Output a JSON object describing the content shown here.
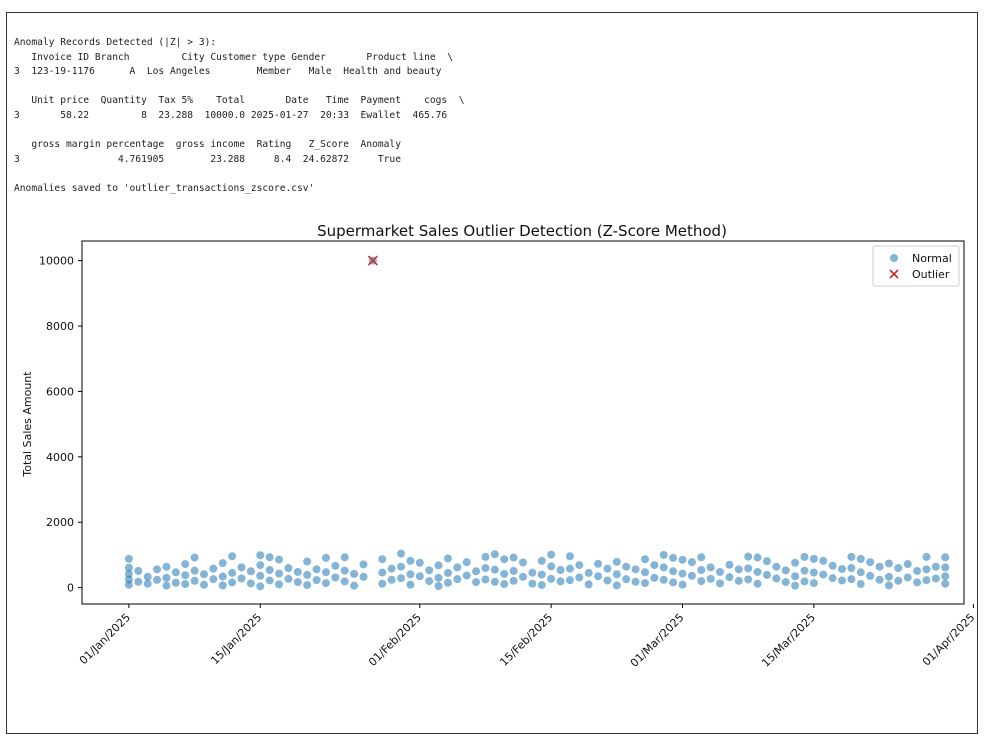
{
  "console": {
    "lines": [
      "Anomaly Records Detected (|Z| > 3):",
      "   Invoice ID Branch         City Customer type Gender       Product line  \\",
      "3  123-19-1176      A  Los Angeles        Member   Male  Health and beauty",
      "",
      "   Unit price  Quantity  Tax 5%    Total       Date   Time  Payment    cogs  \\",
      "3       58.22         8  23.288  10000.0 2025-01-27  20:33  Ewallet  465.76",
      "",
      "   gross margin percentage  gross income  Rating   Z_Score  Anomaly",
      "3                 4.761905        23.288     8.4  24.62872     True",
      "",
      "Anomalies saved to 'outlier_transactions_zscore.csv'"
    ]
  },
  "chart_data": {
    "type": "scatter",
    "title": "Supermarket Sales Outlier Detection (Z-Score Method)",
    "xlabel": "",
    "ylabel": "Total Sales Amount",
    "x_type": "date",
    "xlim": [
      "2024-12-27",
      "2025-03-31"
    ],
    "ylim": [
      -500,
      10600
    ],
    "yticks": [
      0,
      2000,
      4000,
      6000,
      8000,
      10000
    ],
    "xticks": [
      "01/Jan/2025",
      "15/Jan/2025",
      "01/Feb/2025",
      "15/Feb/2025",
      "01/Mar/2025",
      "15/Mar/2025",
      "01/Apr/2025"
    ],
    "grid": false,
    "legend": {
      "position": "top-right",
      "entries": [
        "Normal",
        "Outlier"
      ]
    },
    "series": [
      {
        "name": "Normal",
        "color": "#1f77b4",
        "marker": "circle",
        "note_value_range": [
          10,
          1040
        ],
        "points": [
          [
            "2025-01-01",
            880
          ],
          [
            "2025-01-01",
            610
          ],
          [
            "2025-01-01",
            420
          ],
          [
            "2025-01-01",
            250
          ],
          [
            "2025-01-01",
            90
          ],
          [
            "2025-01-02",
            510
          ],
          [
            "2025-01-02",
            180
          ],
          [
            "2025-01-03",
            330
          ],
          [
            "2025-01-03",
            120
          ],
          [
            "2025-01-04",
            560
          ],
          [
            "2025-01-04",
            240
          ],
          [
            "2025-01-05",
            640
          ],
          [
            "2025-01-05",
            300
          ],
          [
            "2025-01-05",
            60
          ],
          [
            "2025-01-06",
            470
          ],
          [
            "2025-01-06",
            150
          ],
          [
            "2025-01-07",
            720
          ],
          [
            "2025-01-07",
            380
          ],
          [
            "2025-01-07",
            110
          ],
          [
            "2025-01-08",
            920
          ],
          [
            "2025-01-08",
            520
          ],
          [
            "2025-01-08",
            210
          ],
          [
            "2025-01-09",
            410
          ],
          [
            "2025-01-09",
            90
          ],
          [
            "2025-01-10",
            580
          ],
          [
            "2025-01-10",
            260
          ],
          [
            "2025-01-11",
            750
          ],
          [
            "2025-01-11",
            340
          ],
          [
            "2025-01-11",
            70
          ],
          [
            "2025-01-12",
            960
          ],
          [
            "2025-01-12",
            450
          ],
          [
            "2025-01-12",
            160
          ],
          [
            "2025-01-13",
            620
          ],
          [
            "2025-01-13",
            280
          ],
          [
            "2025-01-14",
            500
          ],
          [
            "2025-01-14",
            130
          ],
          [
            "2025-01-15",
            990
          ],
          [
            "2025-01-15",
            690
          ],
          [
            "2025-01-15",
            360
          ],
          [
            "2025-01-15",
            40
          ],
          [
            "2025-01-16",
            930
          ],
          [
            "2025-01-16",
            540
          ],
          [
            "2025-01-16",
            220
          ],
          [
            "2025-01-17",
            860
          ],
          [
            "2025-01-17",
            430
          ],
          [
            "2025-01-17",
            100
          ],
          [
            "2025-01-18",
            600
          ],
          [
            "2025-01-18",
            270
          ],
          [
            "2025-01-19",
            480
          ],
          [
            "2025-01-19",
            170
          ],
          [
            "2025-01-20",
            800
          ],
          [
            "2025-01-20",
            390
          ],
          [
            "2025-01-20",
            80
          ],
          [
            "2025-01-21",
            560
          ],
          [
            "2025-01-21",
            230
          ],
          [
            "2025-01-22",
            910
          ],
          [
            "2025-01-22",
            470
          ],
          [
            "2025-01-22",
            140
          ],
          [
            "2025-01-23",
            670
          ],
          [
            "2025-01-23",
            310
          ],
          [
            "2025-01-24",
            930
          ],
          [
            "2025-01-24",
            520
          ],
          [
            "2025-01-24",
            190
          ],
          [
            "2025-01-25",
            420
          ],
          [
            "2025-01-25",
            60
          ],
          [
            "2025-01-26",
            710
          ],
          [
            "2025-01-26",
            330
          ],
          [
            "2025-01-28",
            870
          ],
          [
            "2025-01-28",
            460
          ],
          [
            "2025-01-28",
            120
          ],
          [
            "2025-01-29",
            580
          ],
          [
            "2025-01-29",
            240
          ],
          [
            "2025-01-30",
            1040
          ],
          [
            "2025-01-30",
            640
          ],
          [
            "2025-01-30",
            290
          ],
          [
            "2025-01-31",
            820
          ],
          [
            "2025-01-31",
            410
          ],
          [
            "2025-01-31",
            90
          ],
          [
            "2025-02-01",
            760
          ],
          [
            "2025-02-01",
            350
          ],
          [
            "2025-02-02",
            530
          ],
          [
            "2025-02-02",
            200
          ],
          [
            "2025-02-03",
            680
          ],
          [
            "2025-02-03",
            300
          ],
          [
            "2025-02-03",
            50
          ],
          [
            "2025-02-04",
            890
          ],
          [
            "2025-02-04",
            450
          ],
          [
            "2025-02-04",
            150
          ],
          [
            "2025-02-05",
            620
          ],
          [
            "2025-02-05",
            260
          ],
          [
            "2025-02-06",
            780
          ],
          [
            "2025-02-06",
            370
          ],
          [
            "2025-02-07",
            500
          ],
          [
            "2025-02-07",
            170
          ],
          [
            "2025-02-08",
            940
          ],
          [
            "2025-02-08",
            600
          ],
          [
            "2025-02-08",
            250
          ],
          [
            "2025-02-09",
            1020
          ],
          [
            "2025-02-09",
            550
          ],
          [
            "2025-02-09",
            180
          ],
          [
            "2025-02-10",
            870
          ],
          [
            "2025-02-10",
            420
          ],
          [
            "2025-02-10",
            110
          ],
          [
            "2025-02-11",
            920
          ],
          [
            "2025-02-11",
            510
          ],
          [
            "2025-02-11",
            210
          ],
          [
            "2025-02-12",
            770
          ],
          [
            "2025-02-12",
            330
          ],
          [
            "2025-02-13",
            460
          ],
          [
            "2025-02-13",
            120
          ],
          [
            "2025-02-14",
            820
          ],
          [
            "2025-02-14",
            400
          ],
          [
            "2025-02-14",
            80
          ],
          [
            "2025-02-15",
            1010
          ],
          [
            "2025-02-15",
            650
          ],
          [
            "2025-02-15",
            270
          ],
          [
            "2025-02-16",
            540
          ],
          [
            "2025-02-16",
            190
          ],
          [
            "2025-02-17",
            960
          ],
          [
            "2025-02-17",
            580
          ],
          [
            "2025-02-17",
            230
          ],
          [
            "2025-02-18",
            690
          ],
          [
            "2025-02-18",
            310
          ],
          [
            "2025-02-19",
            450
          ],
          [
            "2025-02-19",
            100
          ],
          [
            "2025-02-20",
            730
          ],
          [
            "2025-02-20",
            350
          ],
          [
            "2025-02-21",
            580
          ],
          [
            "2025-02-21",
            220
          ],
          [
            "2025-02-22",
            790
          ],
          [
            "2025-02-22",
            410
          ],
          [
            "2025-02-22",
            70
          ],
          [
            "2025-02-23",
            640
          ],
          [
            "2025-02-23",
            260
          ],
          [
            "2025-02-24",
            560
          ],
          [
            "2025-02-24",
            180
          ],
          [
            "2025-02-25",
            870
          ],
          [
            "2025-02-25",
            470
          ],
          [
            "2025-02-25",
            140
          ],
          [
            "2025-02-26",
            690
          ],
          [
            "2025-02-26",
            300
          ],
          [
            "2025-02-27",
            1000
          ],
          [
            "2025-02-27",
            620
          ],
          [
            "2025-02-27",
            240
          ],
          [
            "2025-02-28",
            910
          ],
          [
            "2025-02-28",
            500
          ],
          [
            "2025-02-28",
            160
          ],
          [
            "2025-03-01",
            850
          ],
          [
            "2025-03-01",
            430
          ],
          [
            "2025-03-01",
            90
          ],
          [
            "2025-03-02",
            780
          ],
          [
            "2025-03-02",
            360
          ],
          [
            "2025-03-03",
            930
          ],
          [
            "2025-03-03",
            540
          ],
          [
            "2025-03-03",
            200
          ],
          [
            "2025-03-04",
            620
          ],
          [
            "2025-03-04",
            270
          ],
          [
            "2025-03-05",
            480
          ],
          [
            "2025-03-05",
            130
          ],
          [
            "2025-03-06",
            700
          ],
          [
            "2025-03-06",
            320
          ],
          [
            "2025-03-07",
            560
          ],
          [
            "2025-03-07",
            210
          ],
          [
            "2025-03-08",
            950
          ],
          [
            "2025-03-08",
            590
          ],
          [
            "2025-03-08",
            250
          ],
          [
            "2025-03-09",
            920
          ],
          [
            "2025-03-09",
            480
          ],
          [
            "2025-03-09",
            120
          ],
          [
            "2025-03-10",
            810
          ],
          [
            "2025-03-10",
            390
          ],
          [
            "2025-03-11",
            640
          ],
          [
            "2025-03-11",
            280
          ],
          [
            "2025-03-12",
            530
          ],
          [
            "2025-03-12",
            170
          ],
          [
            "2025-03-13",
            760
          ],
          [
            "2025-03-13",
            350
          ],
          [
            "2025-03-13",
            60
          ],
          [
            "2025-03-14",
            940
          ],
          [
            "2025-03-14",
            520
          ],
          [
            "2025-03-14",
            190
          ],
          [
            "2025-03-15",
            880
          ],
          [
            "2025-03-15",
            460
          ],
          [
            "2025-03-15",
            140
          ],
          [
            "2025-03-16",
            820
          ],
          [
            "2025-03-16",
            400
          ],
          [
            "2025-03-17",
            670
          ],
          [
            "2025-03-17",
            290
          ],
          [
            "2025-03-18",
            570
          ],
          [
            "2025-03-18",
            220
          ],
          [
            "2025-03-19",
            940
          ],
          [
            "2025-03-19",
            600
          ],
          [
            "2025-03-19",
            260
          ],
          [
            "2025-03-20",
            880
          ],
          [
            "2025-03-20",
            470
          ],
          [
            "2025-03-20",
            110
          ],
          [
            "2025-03-21",
            780
          ],
          [
            "2025-03-21",
            360
          ],
          [
            "2025-03-22",
            640
          ],
          [
            "2025-03-22",
            240
          ],
          [
            "2025-03-23",
            740
          ],
          [
            "2025-03-23",
            330
          ],
          [
            "2025-03-23",
            70
          ],
          [
            "2025-03-24",
            600
          ],
          [
            "2025-03-24",
            210
          ],
          [
            "2025-03-25",
            720
          ],
          [
            "2025-03-25",
            310
          ],
          [
            "2025-03-26",
            510
          ],
          [
            "2025-03-26",
            160
          ],
          [
            "2025-03-27",
            940
          ],
          [
            "2025-03-27",
            560
          ],
          [
            "2025-03-27",
            230
          ],
          [
            "2025-03-28",
            640
          ],
          [
            "2025-03-28",
            280
          ],
          [
            "2025-03-29",
            930
          ],
          [
            "2025-03-29",
            620
          ],
          [
            "2025-03-29",
            350
          ],
          [
            "2025-03-29",
            120
          ]
        ]
      },
      {
        "name": "Outlier",
        "color": "#d62728",
        "marker": "x",
        "points": [
          [
            "2025-01-27",
            10000
          ]
        ]
      }
    ]
  }
}
